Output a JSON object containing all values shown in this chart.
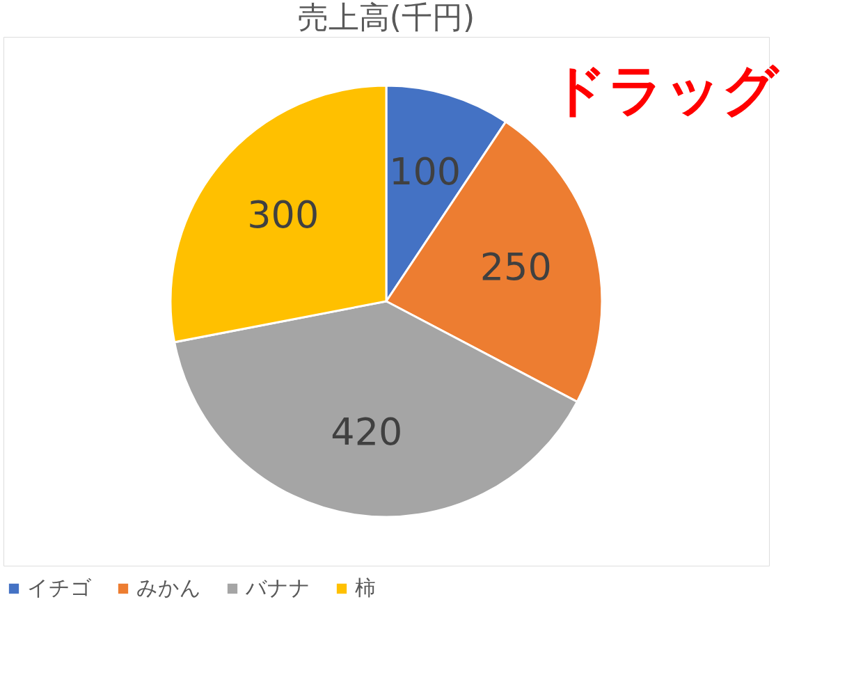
{
  "chart_data": {
    "type": "pie",
    "title": "売上高(千円)",
    "categories": [
      "イチゴ",
      "みかん",
      "バナナ",
      "柿"
    ],
    "values": [
      100,
      250,
      420,
      300
    ],
    "colors": [
      "#4472c4",
      "#ed7d31",
      "#a5a5a5",
      "#ffc000"
    ],
    "data_labels": true,
    "legend": "bottom",
    "annotations": [
      "ドラッグ"
    ]
  }
}
